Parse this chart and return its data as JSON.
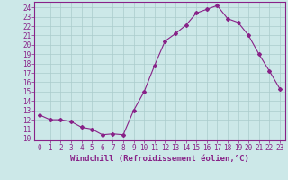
{
  "x": [
    0,
    1,
    2,
    3,
    4,
    5,
    6,
    7,
    8,
    9,
    10,
    11,
    12,
    13,
    14,
    15,
    16,
    17,
    18,
    19,
    20,
    21,
    22,
    23
  ],
  "y": [
    12.5,
    12.0,
    12.0,
    11.8,
    11.2,
    11.0,
    10.4,
    10.5,
    10.4,
    13.0,
    15.0,
    17.8,
    20.4,
    21.2,
    22.1,
    23.4,
    23.8,
    24.2,
    22.8,
    22.4,
    21.0,
    19.0,
    17.2,
    15.3
  ],
  "line_color": "#882288",
  "marker": "D",
  "marker_size": 2,
  "bg_color": "#cce8e8",
  "grid_color": "#aacccc",
  "xlabel": "Windchill (Refroidissement éolien,°C)",
  "ylabel_values": [
    10,
    11,
    12,
    13,
    14,
    15,
    16,
    17,
    18,
    19,
    20,
    21,
    22,
    23,
    24
  ],
  "xlim": [
    -0.5,
    23.5
  ],
  "ylim": [
    9.8,
    24.6
  ],
  "xlabel_fontsize": 6.5,
  "tick_fontsize": 5.5
}
